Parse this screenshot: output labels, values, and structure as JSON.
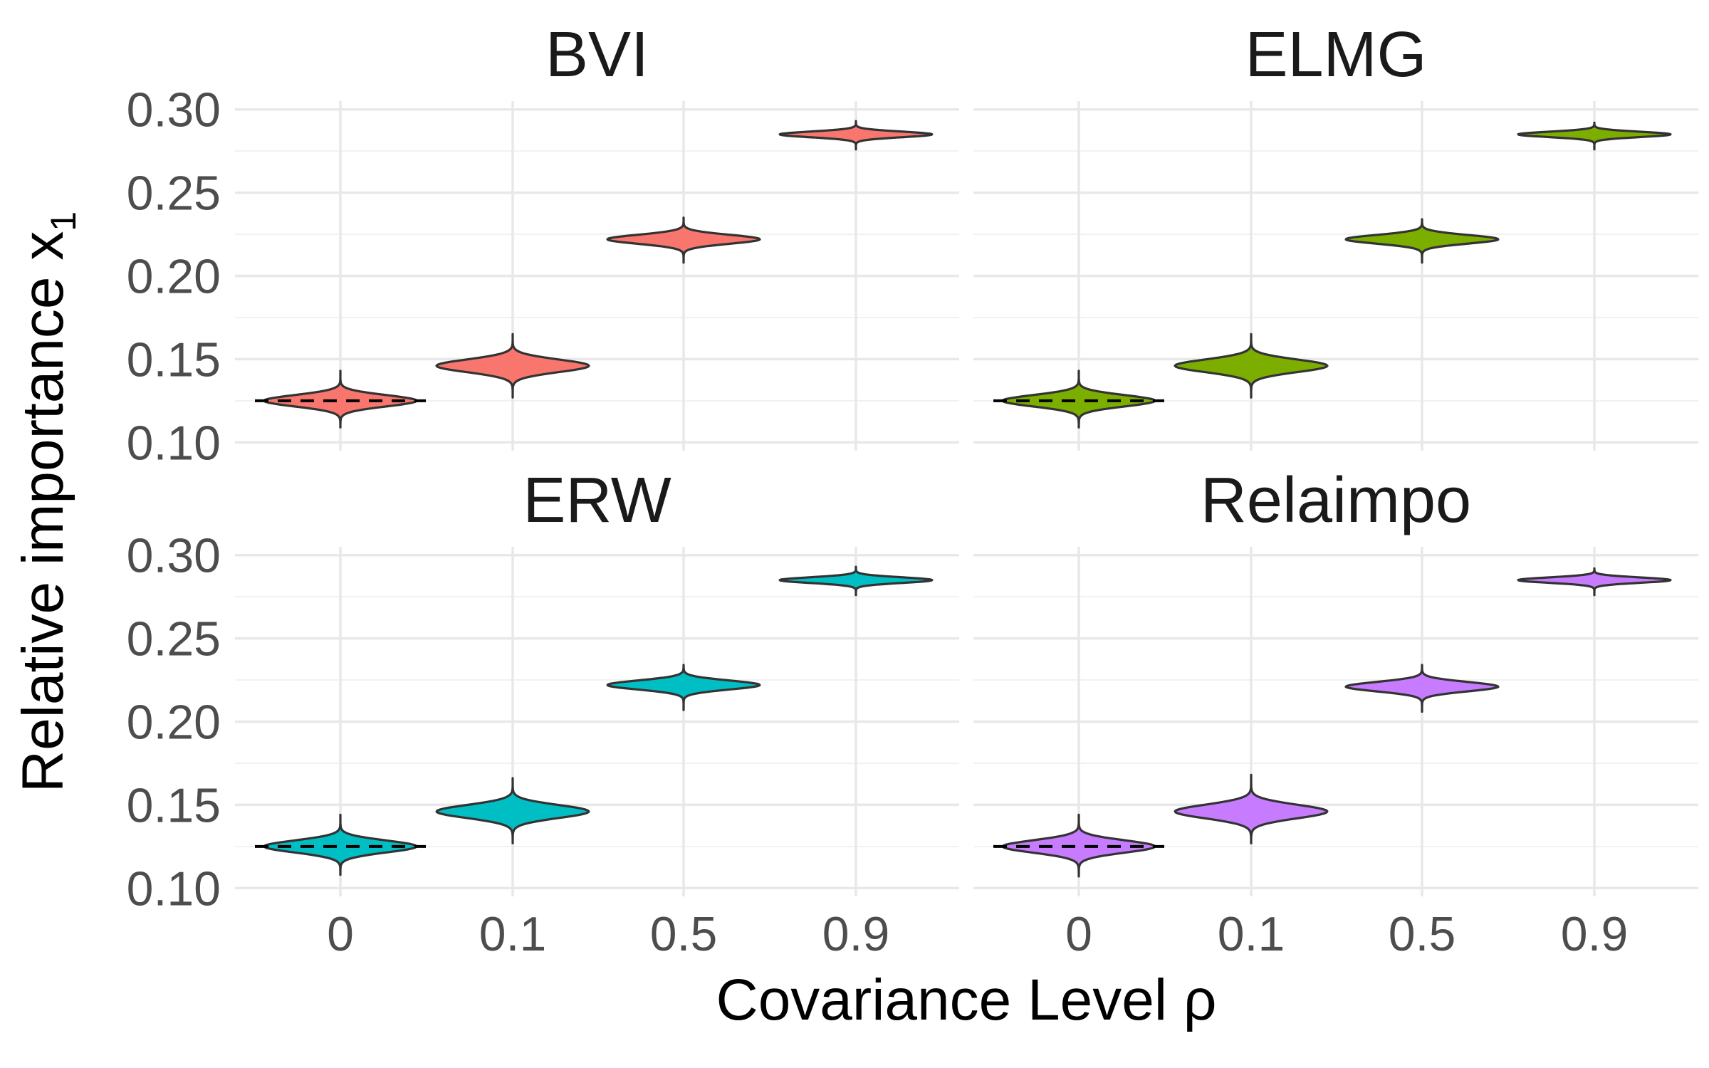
{
  "chart_data": {
    "type": "violin",
    "xlabel": "Covariance Level ρ",
    "ylabel_main": "Relative importance x",
    "ylabel_sub": "1",
    "categories": [
      "0",
      "0.1",
      "0.5",
      "0.9"
    ],
    "ylim": [
      0.095,
      0.305
    ],
    "yticks": [
      {
        "value": 0.1,
        "label": "0.10"
      },
      {
        "value": 0.15,
        "label": "0.15"
      },
      {
        "value": 0.2,
        "label": "0.20"
      },
      {
        "value": 0.25,
        "label": "0.25"
      },
      {
        "value": 0.3,
        "label": "0.30"
      }
    ],
    "reference_line": {
      "value": 0.125,
      "style": "dashed",
      "span_category": "0"
    },
    "grid": true,
    "panels": [
      {
        "title": "BVI",
        "color": "#F8766D",
        "violins": [
          {
            "x": "0",
            "center": 0.125,
            "min": 0.109,
            "max": 0.143
          },
          {
            "x": "0.1",
            "center": 0.146,
            "min": 0.127,
            "max": 0.165
          },
          {
            "x": "0.5",
            "center": 0.222,
            "min": 0.208,
            "max": 0.235
          },
          {
            "x": "0.9",
            "center": 0.285,
            "min": 0.276,
            "max": 0.293
          }
        ]
      },
      {
        "title": "ELMG",
        "color": "#7CAE00",
        "violins": [
          {
            "x": "0",
            "center": 0.125,
            "min": 0.109,
            "max": 0.143
          },
          {
            "x": "0.1",
            "center": 0.146,
            "min": 0.127,
            "max": 0.165
          },
          {
            "x": "0.5",
            "center": 0.222,
            "min": 0.208,
            "max": 0.234
          },
          {
            "x": "0.9",
            "center": 0.285,
            "min": 0.276,
            "max": 0.292
          }
        ]
      },
      {
        "title": "ERW",
        "color": "#00BFC4",
        "violins": [
          {
            "x": "0",
            "center": 0.125,
            "min": 0.108,
            "max": 0.144
          },
          {
            "x": "0.1",
            "center": 0.146,
            "min": 0.127,
            "max": 0.166
          },
          {
            "x": "0.5",
            "center": 0.222,
            "min": 0.207,
            "max": 0.234
          },
          {
            "x": "0.9",
            "center": 0.285,
            "min": 0.276,
            "max": 0.293
          }
        ]
      },
      {
        "title": "Relaimpo",
        "color": "#C77CFF",
        "violins": [
          {
            "x": "0",
            "center": 0.125,
            "min": 0.107,
            "max": 0.144
          },
          {
            "x": "0.1",
            "center": 0.146,
            "min": 0.127,
            "max": 0.168
          },
          {
            "x": "0.5",
            "center": 0.221,
            "min": 0.206,
            "max": 0.234
          },
          {
            "x": "0.9",
            "center": 0.285,
            "min": 0.276,
            "max": 0.292
          }
        ]
      }
    ]
  }
}
